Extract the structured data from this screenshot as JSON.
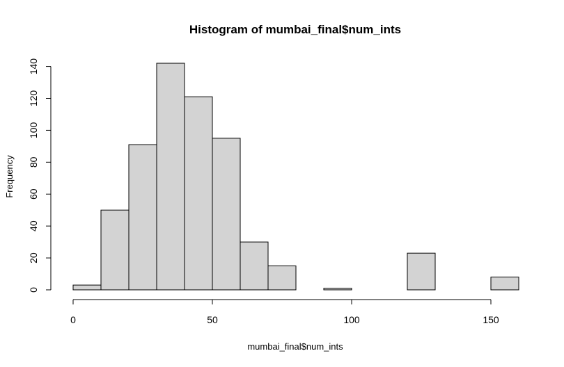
{
  "chart_data": {
    "type": "bar",
    "subtype": "histogram",
    "title": "Histogram of mumbai_final$num_ints",
    "xlabel": "mumbai_final$num_ints",
    "ylabel": "Frequency",
    "bins": [
      {
        "from": 0,
        "to": 10,
        "count": 3
      },
      {
        "from": 10,
        "to": 20,
        "count": 50
      },
      {
        "from": 20,
        "to": 30,
        "count": 91
      },
      {
        "from": 30,
        "to": 40,
        "count": 142
      },
      {
        "from": 40,
        "to": 50,
        "count": 121
      },
      {
        "from": 50,
        "to": 60,
        "count": 95
      },
      {
        "from": 60,
        "to": 70,
        "count": 30
      },
      {
        "from": 70,
        "to": 80,
        "count": 15
      },
      {
        "from": 80,
        "to": 90,
        "count": 0
      },
      {
        "from": 90,
        "to": 100,
        "count": 1
      },
      {
        "from": 100,
        "to": 110,
        "count": 0
      },
      {
        "from": 110,
        "to": 120,
        "count": 0
      },
      {
        "from": 120,
        "to": 130,
        "count": 23
      },
      {
        "from": 130,
        "to": 140,
        "count": 0
      },
      {
        "from": 140,
        "to": 150,
        "count": 0
      },
      {
        "from": 150,
        "to": 160,
        "count": 8
      }
    ],
    "xlim": [
      0,
      160
    ],
    "ylim": [
      0,
      142
    ],
    "xticks": [
      0,
      50,
      100,
      150
    ],
    "xtick_labels": [
      "0",
      "50",
      "100",
      "150"
    ],
    "yticks": [
      0,
      20,
      40,
      60,
      80,
      100,
      120,
      140
    ],
    "ytick_labels": [
      "0",
      "20",
      "40",
      "60",
      "80",
      "100",
      "120",
      "140"
    ],
    "bar_fill": "#d3d3d3",
    "bar_stroke": "#000000",
    "grid": false,
    "legend": "none"
  }
}
